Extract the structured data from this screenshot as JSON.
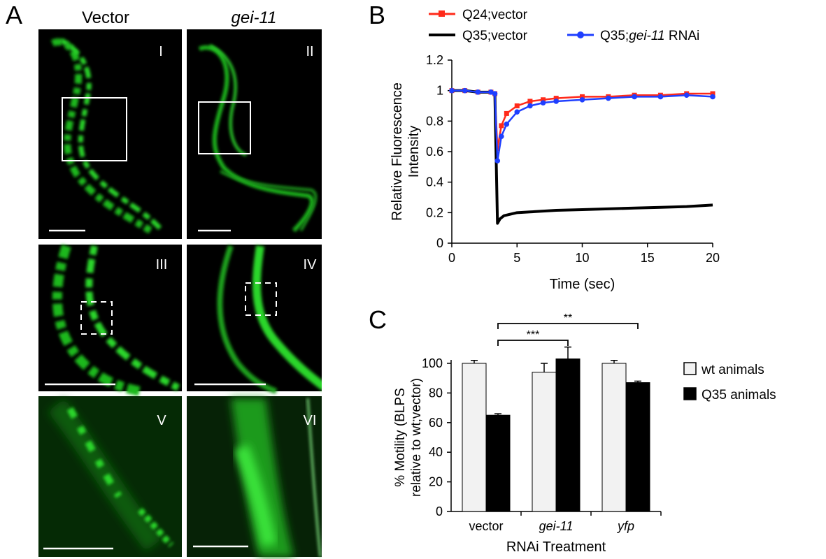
{
  "figure": {
    "panel_labels": {
      "a": "A",
      "b": "B",
      "c": "C"
    }
  },
  "panel_a": {
    "column_titles": [
      "Vector",
      "gei-11"
    ],
    "image_labels": [
      "I",
      "II",
      "III",
      "IV",
      "V",
      "VI"
    ],
    "colors": {
      "background": "#000000",
      "fluorescence": "#22dd22",
      "box": "#ffffff"
    }
  },
  "chart_data": [
    {
      "type": "line",
      "panel": "B",
      "title": "",
      "xlabel": "Time (sec)",
      "ylabel": "Relative Fluorescence Intensity",
      "xlim": [
        0,
        20
      ],
      "ylim": [
        0,
        1.2
      ],
      "x_ticks": [
        "0",
        "5",
        "10",
        "15",
        "20"
      ],
      "y_ticks": [
        "0",
        "0.2",
        "0.4",
        "0.6",
        "0.8",
        "1",
        "1.2"
      ],
      "grid": false,
      "legend": [
        {
          "prefix": "Q24;vector",
          "italic": "",
          "suffix": "",
          "color": "#ff2a1a"
        },
        {
          "prefix": "Q35;vector",
          "italic": "",
          "suffix": "",
          "color": "#000000"
        },
        {
          "prefix": "Q35;",
          "italic": "gei-11",
          "suffix": " RNAi",
          "color": "#1f3fff"
        }
      ],
      "series": [
        {
          "name": "Q24;vector",
          "color": "#ff2a1a",
          "marker": "square",
          "x": [
            0,
            1,
            2,
            3,
            3.3,
            3.5,
            3.8,
            4.2,
            5,
            6,
            7,
            8,
            10,
            12,
            14,
            16,
            18,
            20
          ],
          "y": [
            1.0,
            1.0,
            0.99,
            0.99,
            0.98,
            0.62,
            0.77,
            0.85,
            0.9,
            0.93,
            0.94,
            0.95,
            0.96,
            0.96,
            0.97,
            0.97,
            0.98,
            0.98
          ]
        },
        {
          "name": "Q35;vector",
          "color": "#000000",
          "marker": "none",
          "x": [
            0,
            1,
            2,
            3,
            3.3,
            3.5,
            3.7,
            4,
            5,
            6,
            8,
            10,
            12,
            14,
            16,
            18,
            20
          ],
          "y": [
            1.0,
            1.0,
            0.99,
            0.99,
            0.98,
            0.13,
            0.16,
            0.18,
            0.2,
            0.205,
            0.215,
            0.22,
            0.225,
            0.23,
            0.235,
            0.24,
            0.25
          ]
        },
        {
          "name": "Q35;gei-11 RNAi",
          "color": "#1f3fff",
          "marker": "circle",
          "x": [
            0,
            1,
            2,
            3,
            3.3,
            3.5,
            3.8,
            4.2,
            5,
            6,
            7,
            8,
            10,
            12,
            14,
            16,
            18,
            20
          ],
          "y": [
            1.0,
            1.0,
            0.99,
            0.99,
            0.98,
            0.54,
            0.7,
            0.78,
            0.86,
            0.9,
            0.92,
            0.93,
            0.94,
            0.95,
            0.96,
            0.96,
            0.97,
            0.96
          ]
        }
      ]
    },
    {
      "type": "bar",
      "panel": "C",
      "title": "",
      "xlabel": "RNAi Treatment",
      "ylabel_lines": [
        "% Motility (BLPS",
        "relative to wt;vector)"
      ],
      "ylim": [
        0,
        100
      ],
      "y_ticks": [
        "0",
        "20",
        "40",
        "60",
        "80",
        "100"
      ],
      "categories": [
        {
          "label": "vector",
          "italic": false
        },
        {
          "label": "gei-11",
          "italic": true
        },
        {
          "label": "yfp",
          "italic": true
        }
      ],
      "legend": [
        {
          "name": "wt animals",
          "color": "#f2f2f2"
        },
        {
          "name": "Q35 animals",
          "color": "#000000"
        }
      ],
      "series": [
        {
          "name": "wt animals",
          "color": "#f2f2f2",
          "values": [
            100,
            94,
            100
          ],
          "errors": [
            2,
            6,
            2
          ]
        },
        {
          "name": "Q35 animals",
          "color": "#000000",
          "values": [
            65,
            103,
            87
          ],
          "errors": [
            1,
            8,
            1
          ]
        }
      ],
      "significance": [
        {
          "label": "***",
          "from": [
            0,
            1
          ],
          "to": [
            1,
            1
          ]
        },
        {
          "label": "**",
          "from": [
            0,
            1
          ],
          "to": [
            2,
            1
          ]
        }
      ]
    }
  ]
}
